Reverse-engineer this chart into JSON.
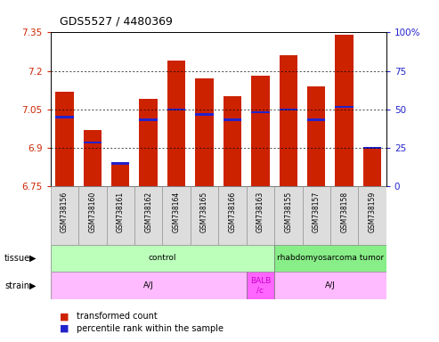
{
  "title": "GDS5527 / 4480369",
  "samples": [
    "GSM738156",
    "GSM738160",
    "GSM738161",
    "GSM738162",
    "GSM738164",
    "GSM738165",
    "GSM738166",
    "GSM738163",
    "GSM738155",
    "GSM738157",
    "GSM738158",
    "GSM738159"
  ],
  "red_values": [
    7.12,
    6.97,
    6.84,
    7.09,
    7.24,
    7.17,
    7.1,
    7.18,
    7.26,
    7.14,
    7.34,
    6.9
  ],
  "blue_values": [
    7.02,
    6.92,
    6.84,
    7.01,
    7.05,
    7.03,
    7.01,
    7.04,
    7.05,
    7.01,
    7.06,
    6.9
  ],
  "ymin": 6.75,
  "ymax": 7.35,
  "yticks": [
    6.75,
    6.9,
    7.05,
    7.2,
    7.35
  ],
  "right_yticks": [
    0,
    25,
    50,
    75,
    100
  ],
  "bar_color": "#cc2200",
  "blue_color": "#2222cc",
  "bar_width": 0.65,
  "tissue_groups": [
    {
      "text": "control",
      "start": 0,
      "end": 7,
      "color": "#bbffbb"
    },
    {
      "text": "rhabdomyosarcoma tumor",
      "start": 8,
      "end": 11,
      "color": "#88ee88"
    }
  ],
  "strain_groups": [
    {
      "text": "A/J",
      "start": 0,
      "end": 6,
      "color": "#ffbbff"
    },
    {
      "text": "BALB\n/c",
      "start": 7,
      "end": 7,
      "color": "#ff66ff"
    },
    {
      "text": "A/J",
      "start": 8,
      "end": 11,
      "color": "#ffbbff"
    }
  ]
}
